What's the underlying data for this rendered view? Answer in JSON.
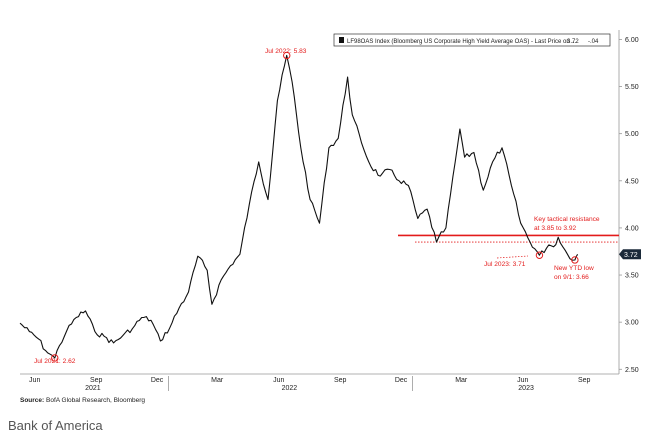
{
  "chart_data": {
    "type": "line",
    "legend": "LF98OAS Index (Bloomberg US Corporate High Yield Average OAS) - Last Price on ...",
    "legend_value": "3.72",
    "legend_change": "-.04",
    "last_value_label": "3.72",
    "y_ticks": [
      "6.00",
      "5.50",
      "5.00",
      "4.50",
      "4.00",
      "3.50",
      "3.00",
      "2.50"
    ],
    "ylim": [
      2.45,
      6.1
    ],
    "x_ticks": [
      "Jun",
      "Sep",
      "Dec",
      "Mar",
      "Jun",
      "Sep",
      "Dec",
      "Mar",
      "Jun",
      "Sep"
    ],
    "year_labels": [
      "2021",
      "2022",
      "2023"
    ],
    "resistance_level": 3.92,
    "resistance_low": 3.85,
    "series": [
      {
        "x": [
          "2021-05-24",
          "2021-06-07",
          "2021-06-21",
          "2021-07-01",
          "2021-07-08",
          "2021-07-15",
          "2021-07-22",
          "2021-08-02",
          "2021-08-16",
          "2021-08-30",
          "2021-09-13",
          "2021-09-27",
          "2021-10-11",
          "2021-10-25",
          "2021-11-08",
          "2021-11-22",
          "2021-12-06",
          "2021-12-20",
          "2022-01-03",
          "2022-01-17",
          "2022-01-31",
          "2022-02-14",
          "2022-02-28",
          "2022-03-07",
          "2022-03-21",
          "2022-04-04",
          "2022-04-18",
          "2022-05-02",
          "2022-05-16",
          "2022-05-30",
          "2022-06-13",
          "2022-06-27",
          "2022-07-05",
          "2022-07-18",
          "2022-08-01",
          "2022-08-15",
          "2022-08-29",
          "2022-09-12",
          "2022-09-26",
          "2022-10-03",
          "2022-10-17",
          "2022-10-31",
          "2022-11-14",
          "2022-11-28",
          "2022-12-12",
          "2022-12-26",
          "2023-01-09",
          "2023-01-23",
          "2023-02-06",
          "2023-02-20",
          "2023-03-06",
          "2023-03-13",
          "2023-03-20",
          "2023-04-03",
          "2023-04-17",
          "2023-05-01",
          "2023-05-15",
          "2023-05-29",
          "2023-06-12",
          "2023-06-26",
          "2023-07-10",
          "2023-07-24",
          "2023-07-31",
          "2023-08-07",
          "2023-08-14",
          "2023-08-21",
          "2023-09-01",
          "2023-09-05"
        ],
        "values": [
          2.99,
          2.9,
          2.82,
          2.7,
          2.66,
          2.62,
          2.75,
          2.91,
          3.05,
          3.12,
          2.9,
          2.85,
          2.78,
          2.86,
          2.93,
          3.05,
          3.02,
          2.8,
          2.94,
          3.15,
          3.32,
          3.7,
          3.55,
          3.19,
          3.45,
          3.6,
          3.72,
          4.25,
          4.7,
          4.3,
          5.35,
          5.83,
          5.55,
          4.85,
          4.3,
          4.05,
          4.85,
          4.95,
          5.6,
          5.2,
          4.9,
          4.65,
          4.55,
          4.62,
          4.5,
          4.45,
          4.1,
          4.2,
          3.85,
          4.0,
          4.7,
          5.05,
          4.75,
          4.8,
          4.4,
          4.7,
          4.85,
          4.45,
          4.05,
          3.85,
          3.71,
          3.82,
          3.8,
          3.9,
          3.8,
          3.72,
          3.66,
          3.72
        ]
      }
    ]
  },
  "annotations": {
    "peak": "Jul 2022: 5.83",
    "trough": "Jul 2021: 2.62",
    "jul2023": "Jul 2023: 3.71",
    "resistance_line1": "Key tactical resistance",
    "resistance_line2": "at 3.85 to 3.92",
    "ytd_line1": "New YTD low",
    "ytd_line2": "on 9/1: 3.66"
  },
  "source": {
    "label": "Source:",
    "text": "BofA Global Research, Bloomberg"
  },
  "credit": "Bank of America",
  "colors": {
    "line": "#111111",
    "annotation": "#e31b1b",
    "axis": "#999999"
  }
}
